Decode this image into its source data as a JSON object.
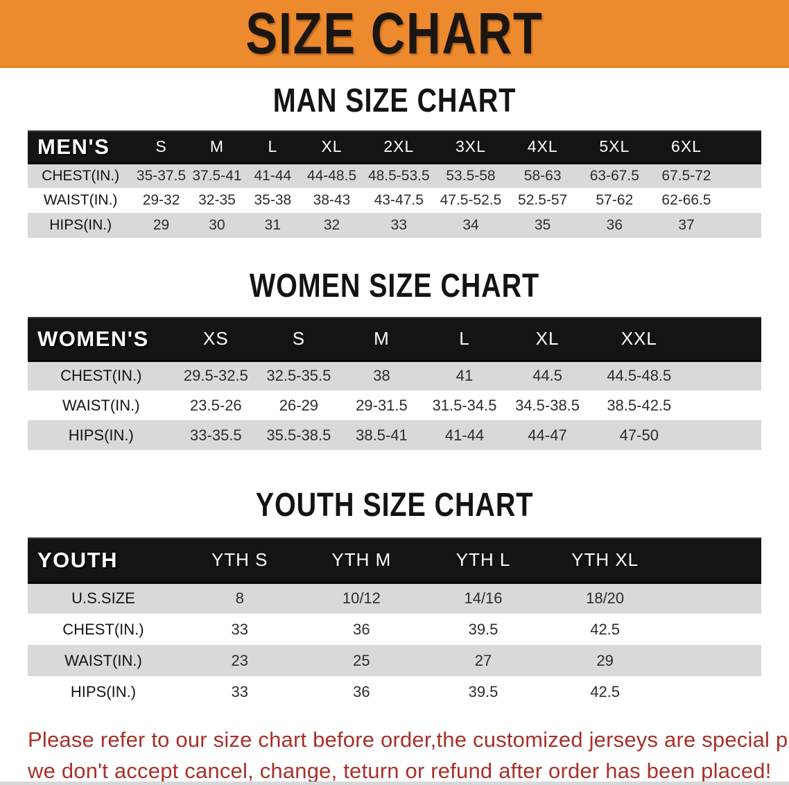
{
  "banner": {
    "title": "SIZE CHART",
    "bg_color": "#ed8a2e"
  },
  "sections": {
    "men": {
      "heading": "MAN SIZE CHART",
      "table": {
        "columns": [
          "MEN'S",
          "S",
          "M",
          "L",
          "XL",
          "2XL",
          "3XL",
          "4XL",
          "5XL",
          "6XL"
        ],
        "rows": [
          {
            "label": "CHEST(IN.)",
            "values": [
              "35-37.5",
              "37.5-41",
              "41-44",
              "44-48.5",
              "48.5-53.5",
              "53.5-58",
              "58-63",
              "63-67.5",
              "67.5-72"
            ]
          },
          {
            "label": "WAIST(IN.)",
            "values": [
              "29-32",
              "32-35",
              "35-38",
              "38-43",
              "43-47.5",
              "47.5-52.5",
              "52.5-57",
              "57-62",
              "62-66.5"
            ]
          },
          {
            "label": "HIPS(IN.)",
            "values": [
              "29",
              "30",
              "31",
              "32",
              "33",
              "34",
              "35",
              "36",
              "37"
            ]
          }
        ]
      }
    },
    "women": {
      "heading": "WOMEN SIZE CHART",
      "table": {
        "columns": [
          "WOMEN'S",
          "XS",
          "S",
          "M",
          "L",
          "XL",
          "XXL"
        ],
        "rows": [
          {
            "label": "CHEST(IN.)",
            "values": [
              "29.5-32.5",
              "32.5-35.5",
              "38",
              "41",
              "44.5",
              "44.5-48.5"
            ]
          },
          {
            "label": "WAIST(IN.)",
            "values": [
              "23.5-26",
              "26-29",
              "29-31.5",
              "31.5-34.5",
              "34.5-38.5",
              "38.5-42.5"
            ]
          },
          {
            "label": "HIPS(IN.)",
            "values": [
              "33-35.5",
              "35.5-38.5",
              "38.5-41",
              "41-44",
              "44-47",
              "47-50"
            ]
          }
        ]
      }
    },
    "youth": {
      "heading": "YOUTH SIZE CHART",
      "table": {
        "columns": [
          "YOUTH",
          "YTH S",
          "YTH M",
          "YTH L",
          "YTH XL"
        ],
        "rows": [
          {
            "label": "U.S.SIZE",
            "values": [
              "8",
              "10/12",
              "14/16",
              "18/20"
            ]
          },
          {
            "label": "CHEST(IN.)",
            "values": [
              "33",
              "36",
              "39.5",
              "42.5"
            ]
          },
          {
            "label": "WAIST(IN.)",
            "values": [
              "23",
              "25",
              "27",
              "29"
            ]
          },
          {
            "label": "HIPS(IN.)",
            "values": [
              "33",
              "36",
              "39.5",
              "42.5"
            ]
          }
        ]
      }
    }
  },
  "notice": {
    "line1": "Please refer to our size chart before order,the customized jerseys are special products,",
    "line2": "we don't accept cancel, change, teturn or refund after order has been placed!",
    "text_color": "#a93029"
  }
}
